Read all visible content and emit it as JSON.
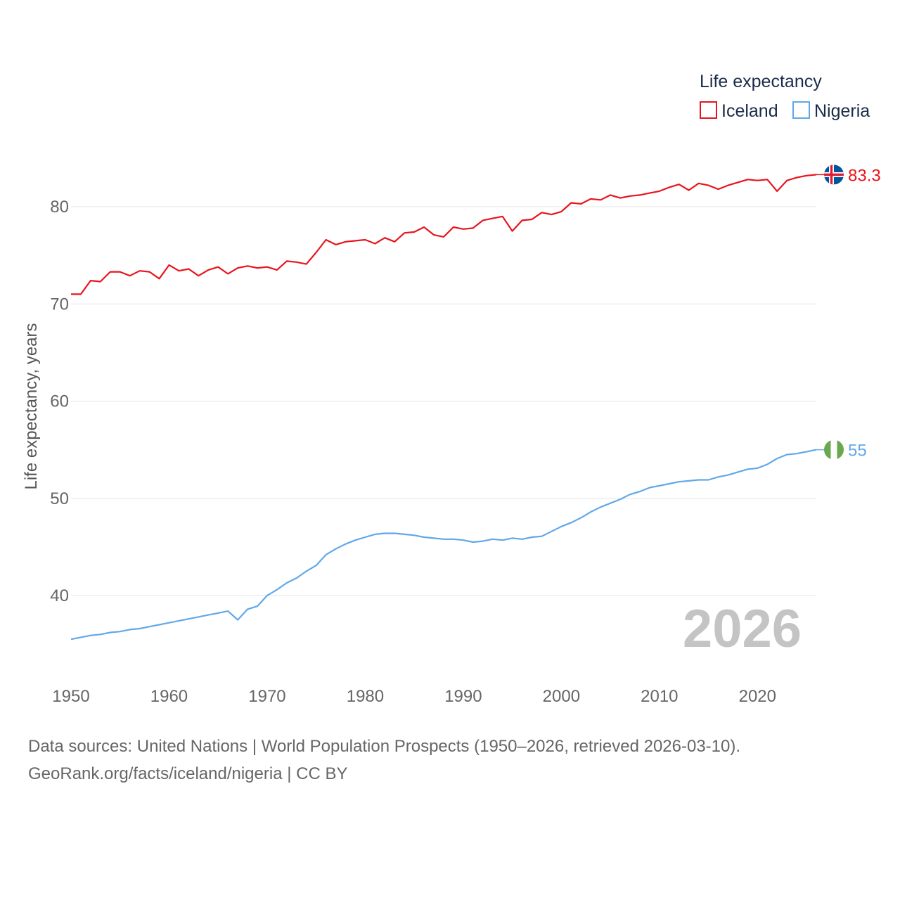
{
  "chart_data": {
    "type": "line",
    "title": "",
    "legend_title": "Life expectancy",
    "xlabel": "",
    "ylabel": "Life expectancy, years",
    "xlim": [
      1950,
      2026
    ],
    "ylim": [
      33.5,
      86
    ],
    "yticks": [
      40,
      50,
      60,
      70,
      80
    ],
    "xticks": [
      1950,
      1960,
      1970,
      1980,
      1990,
      2000,
      2010,
      2020
    ],
    "current_year": "2026",
    "x": [
      1950,
      1951,
      1952,
      1953,
      1954,
      1955,
      1956,
      1957,
      1958,
      1959,
      1960,
      1961,
      1962,
      1963,
      1964,
      1965,
      1966,
      1967,
      1968,
      1969,
      1970,
      1971,
      1972,
      1973,
      1974,
      1975,
      1976,
      1977,
      1978,
      1979,
      1980,
      1981,
      1982,
      1983,
      1984,
      1985,
      1986,
      1987,
      1988,
      1989,
      1990,
      1991,
      1992,
      1993,
      1994,
      1995,
      1996,
      1997,
      1998,
      1999,
      2000,
      2001,
      2002,
      2003,
      2004,
      2005,
      2006,
      2007,
      2008,
      2009,
      2010,
      2011,
      2012,
      2013,
      2014,
      2015,
      2016,
      2017,
      2018,
      2019,
      2020,
      2021,
      2022,
      2023,
      2024,
      2025,
      2026
    ],
    "series": [
      {
        "name": "Iceland",
        "color": "#e8141c",
        "end_label": "83.3",
        "flag": "iceland-flag",
        "values": [
          71.0,
          71.0,
          72.4,
          72.3,
          73.3,
          73.3,
          72.9,
          73.4,
          73.3,
          72.6,
          74.0,
          73.4,
          73.6,
          72.9,
          73.5,
          73.8,
          73.1,
          73.7,
          73.9,
          73.7,
          73.8,
          73.5,
          74.4,
          74.3,
          74.1,
          75.3,
          76.6,
          76.1,
          76.4,
          76.5,
          76.6,
          76.2,
          76.8,
          76.4,
          77.3,
          77.4,
          77.9,
          77.1,
          76.9,
          77.9,
          77.7,
          77.8,
          78.6,
          78.8,
          79.0,
          77.5,
          78.6,
          78.7,
          79.4,
          79.2,
          79.5,
          80.4,
          80.3,
          80.8,
          80.7,
          81.2,
          80.9,
          81.1,
          81.2,
          81.4,
          81.6,
          82.0,
          82.3,
          81.7,
          82.4,
          82.2,
          81.8,
          82.2,
          82.5,
          82.8,
          82.7,
          82.8,
          81.6,
          82.7,
          83.0,
          83.2,
          83.3
        ]
      },
      {
        "name": "Nigeria",
        "color": "#61a8e8",
        "end_label": "55",
        "flag": "nigeria-flag",
        "values": [
          35.5,
          35.7,
          35.9,
          36.0,
          36.2,
          36.3,
          36.5,
          36.6,
          36.8,
          37.0,
          37.2,
          37.4,
          37.6,
          37.8,
          38.0,
          38.2,
          38.4,
          37.5,
          38.6,
          38.9,
          40.0,
          40.6,
          41.3,
          41.8,
          42.5,
          43.1,
          44.2,
          44.8,
          45.3,
          45.7,
          46.0,
          46.3,
          46.4,
          46.4,
          46.3,
          46.2,
          46.0,
          45.9,
          45.8,
          45.8,
          45.7,
          45.5,
          45.6,
          45.8,
          45.7,
          45.9,
          45.8,
          46.0,
          46.1,
          46.6,
          47.1,
          47.5,
          48.0,
          48.6,
          49.1,
          49.5,
          49.9,
          50.4,
          50.7,
          51.1,
          51.3,
          51.5,
          51.7,
          51.8,
          51.9,
          51.9,
          52.2,
          52.4,
          52.7,
          53.0,
          53.1,
          53.5,
          54.1,
          54.5,
          54.6,
          54.8,
          55.0
        ]
      }
    ]
  },
  "footer": {
    "line1": "Data sources: United Nations | World Population Prospects (1950–2026, retrieved 2026-03-10).",
    "line2": "GeoRank.org/facts/iceland/nigeria | CC BY"
  }
}
